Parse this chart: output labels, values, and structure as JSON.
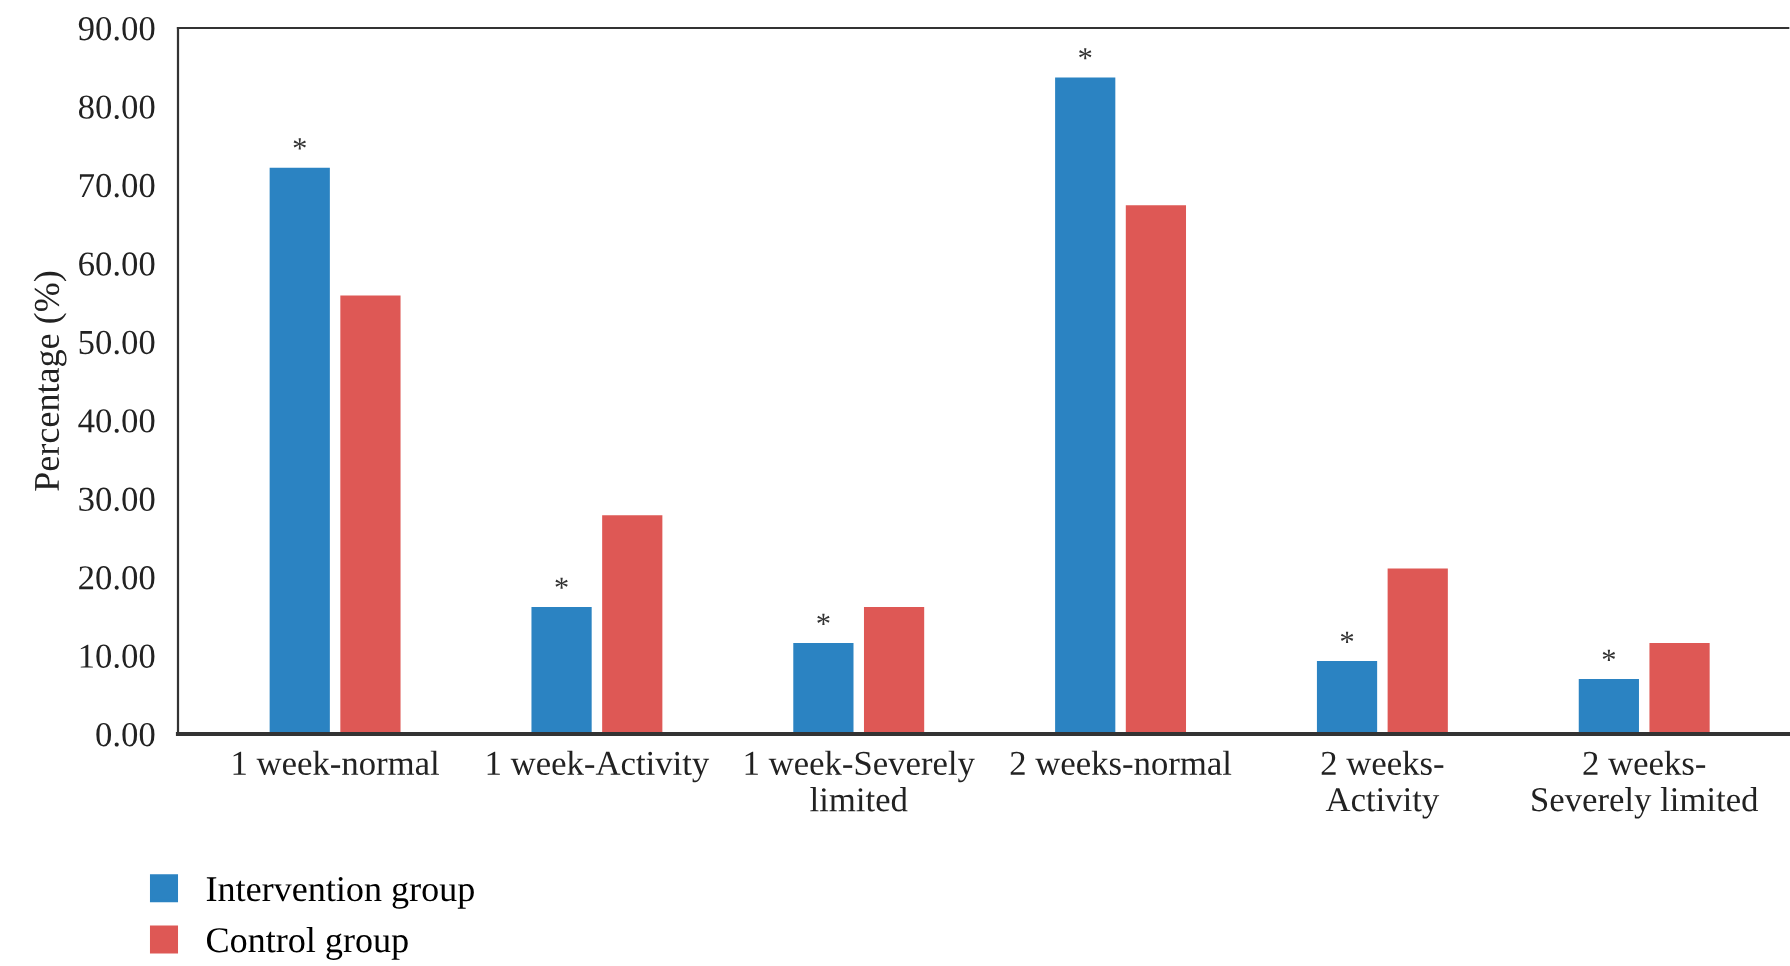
{
  "chart_data": {
    "type": "bar",
    "ylabel": "Percentage (%)",
    "categories": [
      "1 week-normal",
      "1 week-Activity",
      "1 week-Severely\nlimited",
      "2 weeks-normal",
      "2 weeks-\nActivity",
      "2 weeks-\nSeverely limited"
    ],
    "series": [
      {
        "name": "Intervention group",
        "color": "#2b83c2",
        "values": [
          72.2,
          16.2,
          11.6,
          83.7,
          9.3,
          7.0
        ]
      },
      {
        "name": "Control group",
        "color": "#de5855",
        "values": [
          55.9,
          27.9,
          16.2,
          67.4,
          21.1,
          11.6
        ]
      }
    ],
    "ylim": [
      0,
      90
    ],
    "yticks": [
      {
        "value": 0,
        "label": "0.00"
      },
      {
        "value": 10,
        "label": "10.00"
      },
      {
        "value": 20,
        "label": "20.00"
      },
      {
        "value": 30,
        "label": "30.00"
      },
      {
        "value": 40,
        "label": "40.00"
      },
      {
        "value": 50,
        "label": "50.00"
      },
      {
        "value": 60,
        "label": "60.00"
      },
      {
        "value": 70,
        "label": "70.00"
      },
      {
        "value": 80,
        "label": "80.00"
      },
      {
        "value": 90,
        "label": "90.00"
      }
    ],
    "annotations": [
      {
        "text": "*",
        "x": "1 week-normal",
        "y": 72.2
      },
      {
        "text": "*",
        "x": "1 week-Activity",
        "y": 16.2
      },
      {
        "text": "*",
        "x": "1 week-Severely\nlimited",
        "y": 11.6
      },
      {
        "text": "*",
        "x": "2 weeks-normal",
        "y": 83.7
      },
      {
        "text": "*",
        "x": "2 weeks-\nActivity",
        "y": 9.3
      },
      {
        "text": "*",
        "x": "2 weeks-\nSeverely limited",
        "y": 7.0
      }
    ],
    "grid": false,
    "legend": "bottom left"
  }
}
